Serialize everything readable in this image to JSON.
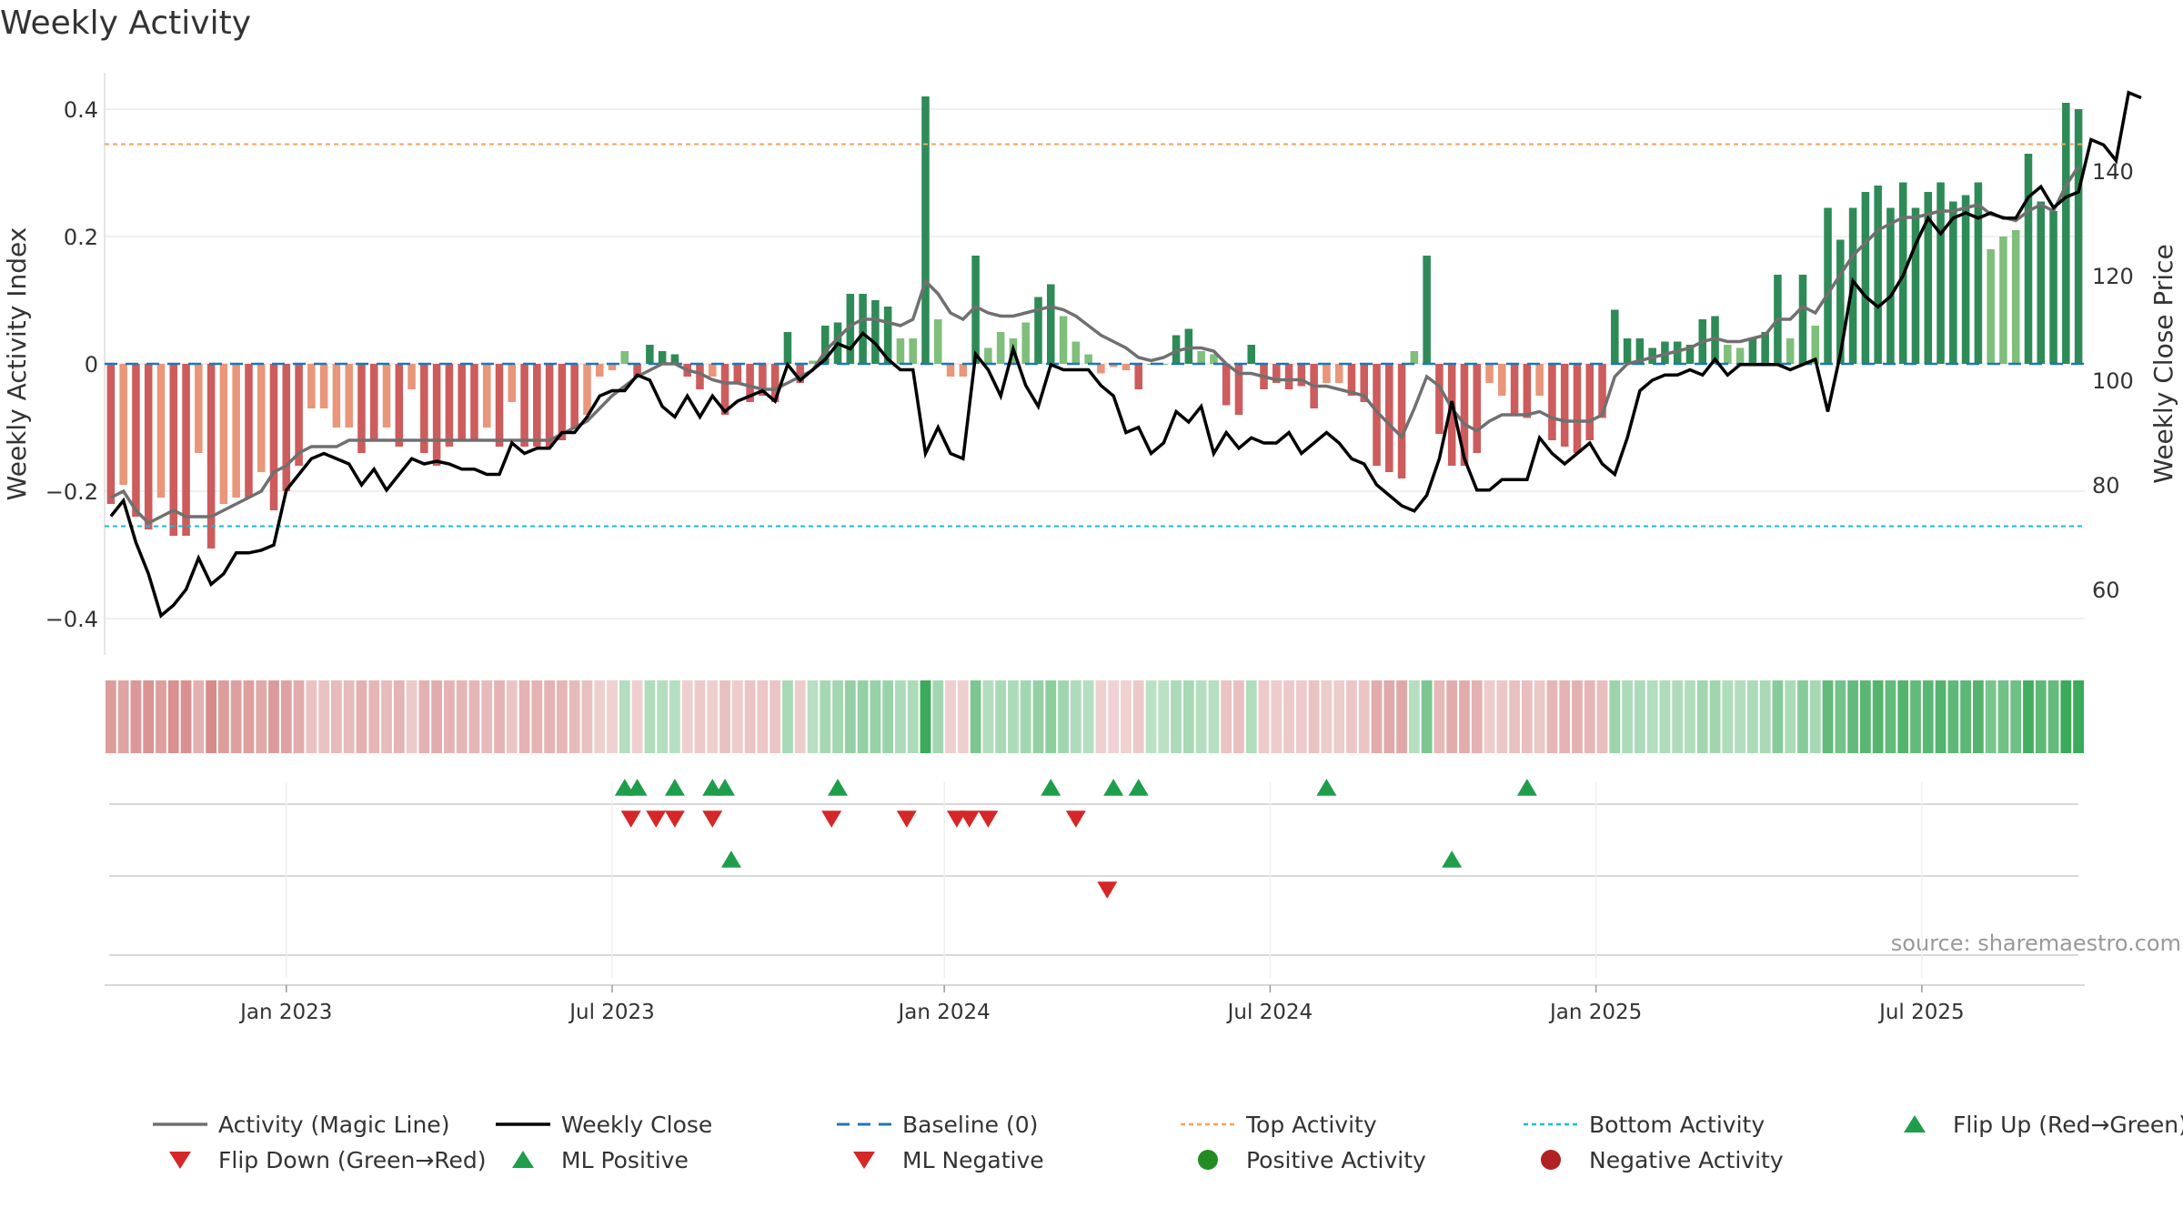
{
  "chart_data": {
    "type": "bar",
    "title": "Weekly Activity",
    "ylabel": "Weekly Activity Index",
    "y2label": "Weekly Close Price",
    "source": "source: sharemaestro.com",
    "ylim": [
      -0.45,
      0.42
    ],
    "y2lim": [
      50,
      155
    ],
    "yticks": [
      0.4,
      0.2,
      0,
      -0.2,
      -0.4
    ],
    "ytick_labels": [
      "0.4",
      "0.2",
      "0",
      "−0.2",
      "−0.4"
    ],
    "y2ticks": [
      140,
      120,
      100,
      80,
      60
    ],
    "y2tick_labels": [
      "140",
      "120",
      "100",
      "80",
      "60"
    ],
    "xticks": [
      "Jan 2023",
      "Jul 2023",
      "Jan 2024",
      "Jul 2024",
      "Jan 2025",
      "Jul 2025"
    ],
    "xtick_weeks": [
      14,
      40,
      66.5,
      92.5,
      118.5,
      144.5
    ],
    "top_activity": 0.345,
    "bottom_activity": -0.255,
    "baseline": 0,
    "colors": {
      "pos_strong": "#2e8b57",
      "pos_light": "#7fbf7b",
      "neg_strong": "#cd5c5c",
      "neg_light": "#e9967a",
      "magic_line": "#707070",
      "close": "#000000",
      "baseline": "#1f77b4",
      "top": "#f4a460",
      "bottom": "#17becf",
      "flip_up": "#1e9e4a",
      "flip_down": "#d62728",
      "negative_dot": "#b22222",
      "positive_dot": "#228b22"
    },
    "series": [
      {
        "name": "Weekly Activity Index",
        "values": [
          -0.22,
          -0.19,
          -0.24,
          -0.26,
          -0.21,
          -0.27,
          -0.27,
          -0.14,
          -0.29,
          -0.22,
          -0.21,
          -0.21,
          -0.17,
          -0.23,
          -0.2,
          -0.16,
          -0.07,
          -0.07,
          -0.1,
          -0.1,
          -0.14,
          -0.12,
          -0.1,
          -0.13,
          -0.04,
          -0.14,
          -0.16,
          -0.13,
          -0.12,
          -0.12,
          -0.1,
          -0.13,
          -0.06,
          -0.13,
          -0.13,
          -0.13,
          -0.12,
          -0.1,
          -0.08,
          -0.02,
          -0.01,
          0.02,
          -0.02,
          0.03,
          0.02,
          0.015,
          -0.02,
          -0.04,
          -0.02,
          -0.08,
          -0.03,
          -0.06,
          -0.05,
          -0.06,
          0.05,
          -0.03,
          0.005,
          0.06,
          0.065,
          0.11,
          0.11,
          0.1,
          0.09,
          0.04,
          0.04,
          0.42,
          0.07,
          -0.02,
          -0.02,
          0.17,
          0.025,
          0.05,
          0.04,
          0.065,
          0.105,
          0.125,
          0.075,
          0.035,
          0.015,
          -0.015,
          -0.005,
          -0.01,
          -0.04,
          0.0,
          0.0,
          0.045,
          0.055,
          0.02,
          0.015,
          -0.065,
          -0.08,
          0.03,
          -0.04,
          -0.03,
          -0.04,
          -0.035,
          -0.07,
          -0.03,
          -0.03,
          -0.05,
          -0.06,
          -0.16,
          -0.17,
          -0.18,
          0.02,
          0.17,
          -0.11,
          -0.16,
          -0.16,
          -0.14,
          -0.03,
          -0.05,
          -0.08,
          -0.085,
          -0.05,
          -0.12,
          -0.13,
          -0.14,
          -0.12,
          -0.085,
          0.085,
          0.04,
          0.04,
          0.025,
          0.035,
          0.035,
          0.03,
          0.07,
          0.075,
          0.03,
          0.025,
          0.04,
          0.05,
          0.14,
          0.04,
          0.14,
          0.06,
          0.245,
          0.195,
          0.245,
          0.27,
          0.28,
          0.245,
          0.285,
          0.245,
          0.27,
          0.285,
          0.255,
          0.265,
          0.285,
          0.18,
          0.2,
          0.21,
          0.33,
          0.255,
          0.24,
          0.41,
          0.4
        ]
      },
      {
        "name": "Activity (Magic Line)",
        "values": [
          -0.21,
          -0.2,
          -0.23,
          -0.25,
          -0.24,
          -0.23,
          -0.24,
          -0.24,
          -0.24,
          -0.23,
          -0.22,
          -0.21,
          -0.2,
          -0.17,
          -0.16,
          -0.14,
          -0.13,
          -0.13,
          -0.13,
          -0.12,
          -0.12,
          -0.12,
          -0.12,
          -0.12,
          -0.12,
          -0.12,
          -0.12,
          -0.12,
          -0.12,
          -0.12,
          -0.12,
          -0.12,
          -0.12,
          -0.12,
          -0.12,
          -0.12,
          -0.11,
          -0.1,
          -0.09,
          -0.07,
          -0.05,
          -0.035,
          -0.02,
          -0.01,
          0.0,
          0.0,
          -0.01,
          -0.015,
          -0.025,
          -0.03,
          -0.03,
          -0.035,
          -0.04,
          -0.04,
          -0.03,
          -0.02,
          -0.01,
          0.02,
          0.04,
          0.06,
          0.07,
          0.07,
          0.065,
          0.06,
          0.07,
          0.13,
          0.11,
          0.08,
          0.07,
          0.09,
          0.08,
          0.075,
          0.075,
          0.08,
          0.085,
          0.09,
          0.085,
          0.075,
          0.06,
          0.045,
          0.035,
          0.025,
          0.01,
          0.005,
          0.01,
          0.02,
          0.025,
          0.025,
          0.02,
          0.0,
          -0.015,
          -0.015,
          -0.02,
          -0.025,
          -0.025,
          -0.025,
          -0.035,
          -0.035,
          -0.04,
          -0.045,
          -0.05,
          -0.075,
          -0.095,
          -0.115,
          -0.07,
          -0.02,
          -0.035,
          -0.07,
          -0.095,
          -0.105,
          -0.09,
          -0.08,
          -0.08,
          -0.08,
          -0.075,
          -0.085,
          -0.09,
          -0.09,
          -0.09,
          -0.08,
          -0.02,
          0.0,
          0.005,
          0.01,
          0.015,
          0.02,
          0.025,
          0.035,
          0.04,
          0.035,
          0.035,
          0.04,
          0.045,
          0.07,
          0.07,
          0.09,
          0.08,
          0.11,
          0.14,
          0.17,
          0.19,
          0.21,
          0.22,
          0.23,
          0.23,
          0.235,
          0.24,
          0.24,
          0.245,
          0.25,
          0.235,
          0.23,
          0.225,
          0.24,
          0.25,
          0.24,
          0.28,
          0.31
        ]
      },
      {
        "name": "Weekly Close",
        "values": [
          74,
          77,
          69,
          63,
          55,
          57,
          60,
          66,
          61,
          63,
          67,
          67,
          67.5,
          68.5,
          79,
          82,
          85,
          86,
          85,
          84,
          80,
          83,
          79,
          82,
          85,
          84,
          84.5,
          84,
          83,
          83,
          82,
          82,
          88,
          86,
          87,
          87,
          90,
          90,
          93,
          97,
          98,
          98,
          101,
          100,
          95,
          93,
          97,
          93,
          97,
          94,
          96,
          97,
          98,
          96,
          103,
          100,
          102,
          104,
          107,
          106,
          109,
          107,
          104,
          102,
          102,
          86,
          91,
          86,
          85,
          105,
          102,
          97,
          106,
          99,
          95,
          103,
          102,
          102,
          102,
          99,
          97,
          90,
          91,
          86,
          88,
          94,
          92,
          95,
          86,
          90,
          87,
          89,
          88,
          88,
          90,
          86,
          88,
          90,
          88,
          85,
          84,
          80,
          78,
          76,
          75,
          78,
          85,
          96,
          85,
          79,
          79,
          81,
          81,
          81,
          89,
          86,
          84,
          86,
          88,
          84,
          82,
          89,
          98,
          100,
          101,
          101,
          102,
          101,
          104,
          101,
          103,
          103,
          103,
          103,
          102,
          103,
          104,
          94,
          105,
          119,
          116,
          114,
          116,
          120,
          126,
          131,
          128,
          131,
          132,
          131,
          132,
          131,
          131,
          135,
          137,
          133,
          135,
          136,
          146,
          145,
          142,
          155,
          154
        ]
      }
    ],
    "flip_up_weeks": [
      41,
      42,
      45,
      48,
      49,
      58,
      75,
      80,
      82,
      97,
      113
    ],
    "flip_down_weeks": [
      41.5,
      43.5,
      45,
      48,
      57.5,
      63.5,
      67.5,
      68.5,
      70,
      77
    ],
    "ml_positive_weeks": [
      49.5,
      107
    ],
    "ml_negative_weeks": [
      79.5
    ],
    "legend": [
      "Activity (Magic Line)",
      "Weekly Close",
      "Baseline (0)",
      "Top Activity",
      "Bottom Activity",
      "Flip Up (Red→Green)",
      "Flip Down (Green→Red)",
      "ML Positive",
      "ML Negative",
      "Positive Activity",
      "Negative Activity"
    ]
  }
}
